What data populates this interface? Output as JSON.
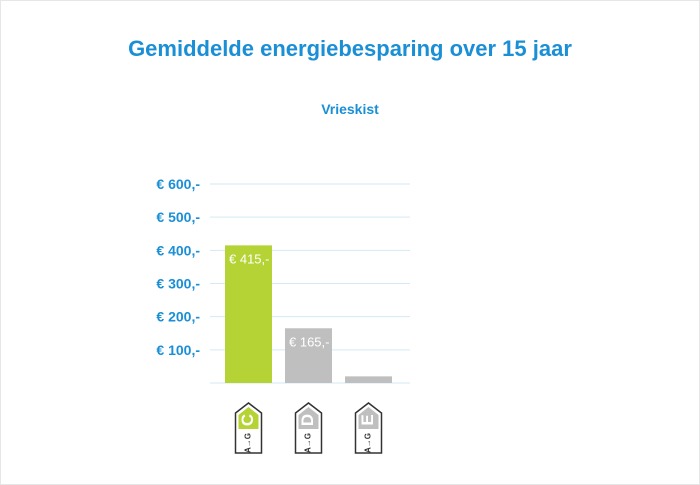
{
  "chart_data": {
    "type": "bar",
    "title": "Gemiddelde energiebesparing over 15 jaar",
    "subtitle": "Vrieskist",
    "categories": [
      "C",
      "D",
      "E"
    ],
    "values": [
      415,
      165,
      20
    ],
    "data_labels": [
      "€ 415,-",
      "€ 165,-",
      ""
    ],
    "yticks": [
      100,
      200,
      300,
      400,
      500,
      600
    ],
    "ytick_labels": [
      "€ 100,-",
      "€ 200,-",
      "€ 300,-",
      "€ 400,-",
      "€ 500,-",
      "€ 600,-"
    ],
    "ylim": [
      0,
      600
    ],
    "grid": true,
    "xlabel": "",
    "ylabel": "",
    "label_scale_text": "A→G",
    "colors": {
      "highlight": "#b5d334",
      "default": "#bfbfbf",
      "axis_text": "#1a8fd6",
      "grid": "#d3e9f5",
      "title": "#1a8fd6"
    },
    "highlight_index": 0
  }
}
